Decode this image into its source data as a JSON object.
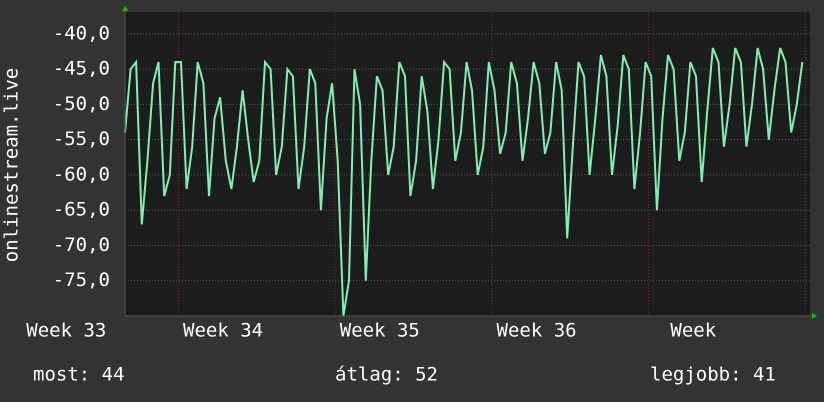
{
  "chart_data": {
    "type": "line",
    "y_label": "onlinestream.live",
    "color": "#7ff0b4",
    "grid": true,
    "xlim": [
      32.66,
      37.03
    ],
    "xticks": [
      {
        "value": 33,
        "label": "Week 33"
      },
      {
        "value": 34,
        "label": "Week 34"
      },
      {
        "value": 35,
        "label": "Week 35"
      },
      {
        "value": 36,
        "label": "Week 36"
      },
      {
        "value": 37,
        "label": "Week"
      }
    ],
    "ylim": [
      -80,
      -36.9
    ],
    "yticks": [
      {
        "value": -75,
        "label": "-75,0"
      },
      {
        "value": -70,
        "label": "-70,0"
      },
      {
        "value": -65,
        "label": "-65,0"
      },
      {
        "value": -60,
        "label": "-60,0"
      },
      {
        "value": -55,
        "label": "-55,0"
      },
      {
        "value": -50,
        "label": "-50,0"
      },
      {
        "value": -45,
        "label": "-45,0"
      },
      {
        "value": -40,
        "label": "-40,0"
      }
    ],
    "x": [
      32.66,
      32.696,
      32.731,
      32.767,
      32.803,
      32.839,
      32.874,
      32.91,
      32.946,
      32.981,
      33.017,
      33.053,
      33.089,
      33.124,
      33.16,
      33.196,
      33.231,
      33.267,
      33.303,
      33.339,
      33.374,
      33.41,
      33.446,
      33.481,
      33.517,
      33.553,
      33.589,
      33.624,
      33.66,
      33.696,
      33.731,
      33.767,
      33.803,
      33.839,
      33.874,
      33.91,
      33.946,
      33.981,
      34.017,
      34.053,
      34.089,
      34.124,
      34.16,
      34.196,
      34.231,
      34.267,
      34.303,
      34.339,
      34.374,
      34.41,
      34.446,
      34.481,
      34.517,
      34.553,
      34.589,
      34.624,
      34.66,
      34.696,
      34.731,
      34.767,
      34.803,
      34.839,
      34.874,
      34.91,
      34.946,
      34.981,
      35.017,
      35.053,
      35.089,
      35.124,
      35.16,
      35.196,
      35.231,
      35.267,
      35.303,
      35.339,
      35.374,
      35.41,
      35.446,
      35.481,
      35.517,
      35.553,
      35.589,
      35.624,
      35.66,
      35.696,
      35.731,
      35.767,
      35.803,
      35.839,
      35.874,
      35.91,
      35.946,
      35.981,
      36.017,
      36.053,
      36.089,
      36.124,
      36.16,
      36.196,
      36.231,
      36.267,
      36.303,
      36.339,
      36.374,
      36.41,
      36.446,
      36.481,
      36.517,
      36.553,
      36.589,
      36.624,
      36.66,
      36.696,
      36.731,
      36.767,
      36.803,
      36.839,
      36.874,
      36.91,
      36.946,
      36.981
    ],
    "values": [
      -54,
      -45,
      -44,
      -67,
      -58,
      -47,
      -44,
      -63,
      -60,
      -44,
      -44,
      -62,
      -56,
      -44,
      -47,
      -63,
      -52,
      -49,
      -58,
      -62,
      -56,
      -48,
      -55,
      -61,
      -58,
      -44,
      -45,
      -60,
      -56,
      -45,
      -46,
      -62,
      -56,
      -45,
      -47,
      -65,
      -52,
      -47,
      -58,
      -80,
      -75,
      -45,
      -50,
      -75,
      -58,
      -46,
      -48,
      -60,
      -56,
      -44,
      -46,
      -63,
      -58,
      -46,
      -51,
      -62,
      -55,
      -44,
      -45,
      -58,
      -54,
      -44,
      -48,
      -60,
      -56,
      -44,
      -48,
      -57,
      -54,
      -44,
      -47,
      -58,
      -52,
      -44,
      -47,
      -57,
      -54,
      -44,
      -48,
      -69,
      -56,
      -44,
      -46,
      -60,
      -52,
      -43,
      -46,
      -60,
      -53,
      -43,
      -45,
      -62,
      -54,
      -44,
      -46,
      -65,
      -52,
      -43,
      -45,
      -58,
      -54,
      -44,
      -46,
      -61,
      -51,
      -42,
      -44,
      -56,
      -50,
      -42,
      -44,
      -56,
      -50,
      -42,
      -45,
      -55,
      -48,
      -42,
      -44,
      -54,
      -50,
      -44
    ],
    "stats": [
      "most: 44",
      "átlag: 52",
      "legjobb: 41"
    ]
  }
}
